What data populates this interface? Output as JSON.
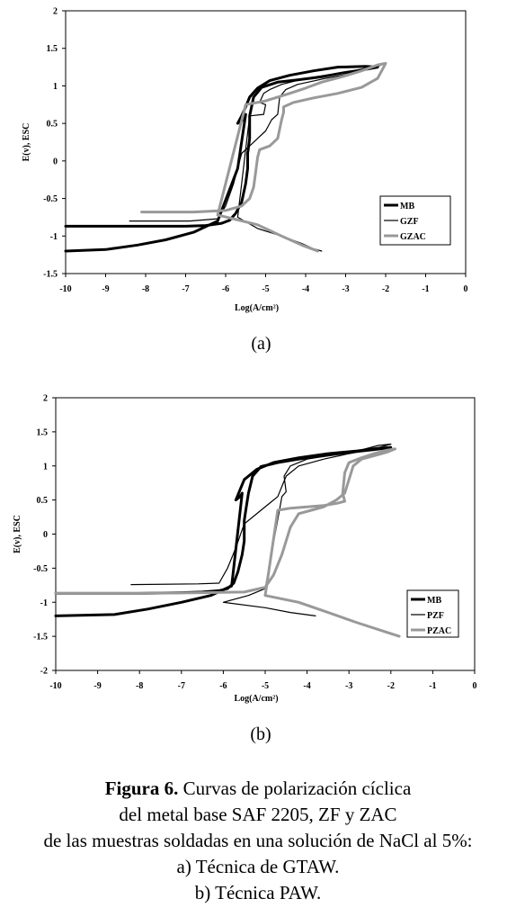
{
  "chart_data": [
    {
      "type": "line",
      "panel_label": "(a)",
      "xlabel": "Log(A/cm²)",
      "ylabel": "E(v), ESC",
      "xlim": [
        -10,
        0
      ],
      "ylim": [
        -1.5,
        2
      ],
      "xticks": [
        "-10",
        "-9",
        "-8",
        "-7",
        "-6",
        "-5",
        "-4",
        "-3",
        "-2",
        "-1",
        "0"
      ],
      "yticks": [
        "-1.5",
        "-1",
        "-0.5",
        "0",
        "0.5",
        "1",
        "1.5",
        "2"
      ],
      "grid": false,
      "legend_position": "bottom-right",
      "series": [
        {
          "name": "MB",
          "color": "#000000",
          "width": 3,
          "x": [
            -10,
            -8,
            -7,
            -6.5,
            -6.1,
            -5.9,
            -5.75,
            -5.6,
            -5.5,
            -5.45,
            -5.45,
            -5.4,
            -5.4,
            -5.3,
            -5.1,
            -4.7,
            -4.2,
            -3.6,
            -3.1,
            -2.6,
            -2.2,
            -2.5,
            -3.2,
            -3.8,
            -4.4,
            -4.9,
            -5.2,
            -5.4,
            -5.5,
            -5.6,
            -5.7,
            -5.55,
            -5.5,
            -5.7,
            -6.2,
            -6.8,
            -7.5,
            -8.2,
            -9,
            -10
          ],
          "y": [
            -0.87,
            -0.87,
            -0.87,
            -0.86,
            -0.83,
            -0.79,
            -0.7,
            -0.55,
            -0.3,
            -0.1,
            0.1,
            0.3,
            0.6,
            0.85,
            0.98,
            1.05,
            1.08,
            1.12,
            1.17,
            1.21,
            1.25,
            1.26,
            1.25,
            1.2,
            1.14,
            1.07,
            0.97,
            0.85,
            0.72,
            0.6,
            0.5,
            0.55,
            0.62,
            -0.1,
            -0.8,
            -0.95,
            -1.05,
            -1.12,
            -1.18,
            -1.2
          ]
        },
        {
          "name": "GZF",
          "color": "#000000",
          "width": 1.2,
          "x": [
            -8.4,
            -6.9,
            -6.2,
            -6,
            -5.8,
            -5.6,
            -5.4,
            -5.2,
            -5,
            -4.85,
            -4.7,
            -4.65,
            -4.5,
            -4.2,
            -3.5,
            -2.8,
            -2.3,
            -2.1,
            -2.3,
            -2.8,
            -3.4,
            -4,
            -4.6,
            -4.9,
            -5.05,
            -5.15,
            -5.0,
            -5.05,
            -5.4,
            -5.7,
            -5.2,
            -4.6,
            -4.1,
            -3.8,
            -3.6
          ],
          "y": [
            -0.8,
            -0.8,
            -0.77,
            -0.6,
            -0.3,
            0.1,
            0.2,
            0.3,
            0.4,
            0.55,
            0.62,
            0.85,
            0.95,
            1.02,
            1.1,
            1.17,
            1.24,
            1.28,
            1.26,
            1.2,
            1.15,
            1.1,
            1.02,
            0.95,
            0.9,
            0.78,
            0.75,
            0.62,
            0.6,
            -0.75,
            -0.9,
            -1.0,
            -1.1,
            -1.17,
            -1.2
          ]
        },
        {
          "name": "GZAC",
          "color": "#999999",
          "width": 3,
          "x": [
            -8.1,
            -6.8,
            -6.0,
            -5.6,
            -5.4,
            -5.3,
            -5.25,
            -5.2,
            -5.15,
            -4.9,
            -4.7,
            -4.6,
            -4.55,
            -4.55,
            -4.3,
            -3.8,
            -3.2,
            -2.6,
            -2.2,
            -2.0,
            -2.2,
            -2.6,
            -3.1,
            -3.6,
            -4.0,
            -4.4,
            -4.7,
            -5.0,
            -5.5,
            -6.2,
            -5.2,
            -4.6,
            -4.1,
            -3.7
          ],
          "y": [
            -0.68,
            -0.68,
            -0.66,
            -0.6,
            -0.5,
            -0.35,
            -0.15,
            0.05,
            0.15,
            0.2,
            0.3,
            0.55,
            0.65,
            0.72,
            0.78,
            0.84,
            0.9,
            0.98,
            1.1,
            1.3,
            1.28,
            1.2,
            1.12,
            1.05,
            0.97,
            0.9,
            0.85,
            0.8,
            0.75,
            -0.72,
            -0.85,
            -1.0,
            -1.12,
            -1.2
          ]
        }
      ]
    },
    {
      "type": "line",
      "panel_label": "(b)",
      "xlabel": "Log(A/cm²)",
      "ylabel": "E(v), ESC",
      "xlim": [
        -10,
        0
      ],
      "ylim": [
        -2,
        2
      ],
      "xticks": [
        "-10",
        "-9",
        "-8",
        "-7",
        "-6",
        "-5",
        "-4",
        "-3",
        "-2",
        "-1",
        "0"
      ],
      "yticks": [
        "-2",
        "-1.5",
        "-1",
        "-0.5",
        "0",
        "0.5",
        "1",
        "1.5",
        "2"
      ],
      "grid": false,
      "legend_position": "bottom-right",
      "series": [
        {
          "name": "MB",
          "color": "#000000",
          "width": 3,
          "x": [
            -10,
            -8,
            -7,
            -6.5,
            -6.1,
            -5.9,
            -5.75,
            -5.65,
            -5.55,
            -5.5,
            -5.5,
            -5.45,
            -5.4,
            -5.3,
            -5.1,
            -4.7,
            -4.2,
            -3.6,
            -3.0,
            -2.4,
            -2.0,
            -2.3,
            -2.8,
            -3.5,
            -4.2,
            -4.8,
            -5.2,
            -5.5,
            -5.6,
            -5.7,
            -5.6,
            -5.55,
            -5.8,
            -6.3,
            -7,
            -7.8,
            -8.6,
            -10
          ],
          "y": [
            -0.87,
            -0.87,
            -0.86,
            -0.85,
            -0.83,
            -0.8,
            -0.72,
            -0.55,
            -0.3,
            -0.1,
            0.2,
            0.4,
            0.6,
            0.85,
            0.99,
            1.05,
            1.1,
            1.15,
            1.2,
            1.24,
            1.27,
            1.26,
            1.22,
            1.18,
            1.12,
            1.05,
            0.95,
            0.8,
            0.65,
            0.5,
            0.55,
            0.6,
            -0.76,
            -0.9,
            -1.0,
            -1.1,
            -1.18,
            -1.2
          ]
        },
        {
          "name": "PZF",
          "color": "#000000",
          "width": 1.2,
          "x": [
            -8.2,
            -6.6,
            -6.1,
            -5.9,
            -5.7,
            -5.5,
            -5.3,
            -5.1,
            -4.9,
            -4.7,
            -4.6,
            -4.5,
            -4.2,
            -3.6,
            -3.0,
            -2.4,
            -2.0,
            -2.3,
            -2.8,
            -3.4,
            -4.0,
            -4.4,
            -4.55,
            -4.5,
            -4.6,
            -5.0,
            -5.4,
            -6.0,
            -5.0,
            -4.4,
            -3.8
          ],
          "y": [
            -0.74,
            -0.73,
            -0.72,
            -0.5,
            -0.2,
            0.15,
            0.25,
            0.35,
            0.45,
            0.55,
            0.7,
            0.85,
            1.0,
            1.1,
            1.18,
            1.25,
            1.32,
            1.3,
            1.22,
            1.16,
            1.1,
            1.0,
            0.85,
            0.62,
            0.55,
            -0.8,
            -0.9,
            -1.0,
            -1.08,
            -1.15,
            -1.2
          ]
        },
        {
          "name": "PZAC",
          "color": "#999999",
          "width": 3,
          "x": [
            -10,
            -8,
            -6.5,
            -5.5,
            -5.0,
            -4.8,
            -4.6,
            -4.5,
            -4.4,
            -4.3,
            -4.2,
            -3.9,
            -3.6,
            -3.3,
            -3.1,
            -3.0,
            -2.9,
            -2.7,
            -2.4,
            -2.1,
            -1.9,
            -2.1,
            -2.4,
            -2.7,
            -3.0,
            -3.1,
            -3.15,
            -3.1,
            -3.3,
            -3.6,
            -4.0,
            -4.4,
            -4.7,
            -5.0,
            -4.2,
            -3.5,
            -2.8,
            -2.2,
            -1.8
          ],
          "y": [
            -0.87,
            -0.87,
            -0.86,
            -0.85,
            -0.78,
            -0.6,
            -0.3,
            -0.1,
            0.1,
            0.2,
            0.3,
            0.35,
            0.4,
            0.5,
            0.6,
            0.8,
            1.0,
            1.1,
            1.15,
            1.2,
            1.25,
            1.23,
            1.18,
            1.12,
            1.05,
            0.9,
            0.6,
            0.48,
            0.45,
            0.42,
            0.4,
            0.38,
            0.35,
            -0.9,
            -1.0,
            -1.15,
            -1.3,
            -1.42,
            -1.5
          ]
        }
      ]
    }
  ],
  "caption": {
    "bold": "Figura 6.",
    "line1": " Curvas de polarización cíclica",
    "line2": "del metal base SAF 2205, ZF y ZAC",
    "line3": "de las muestras soldadas en una solución de NaCl al 5%:",
    "line4": "a) Técnica de GTAW.",
    "line5": "b) Técnica PAW."
  }
}
